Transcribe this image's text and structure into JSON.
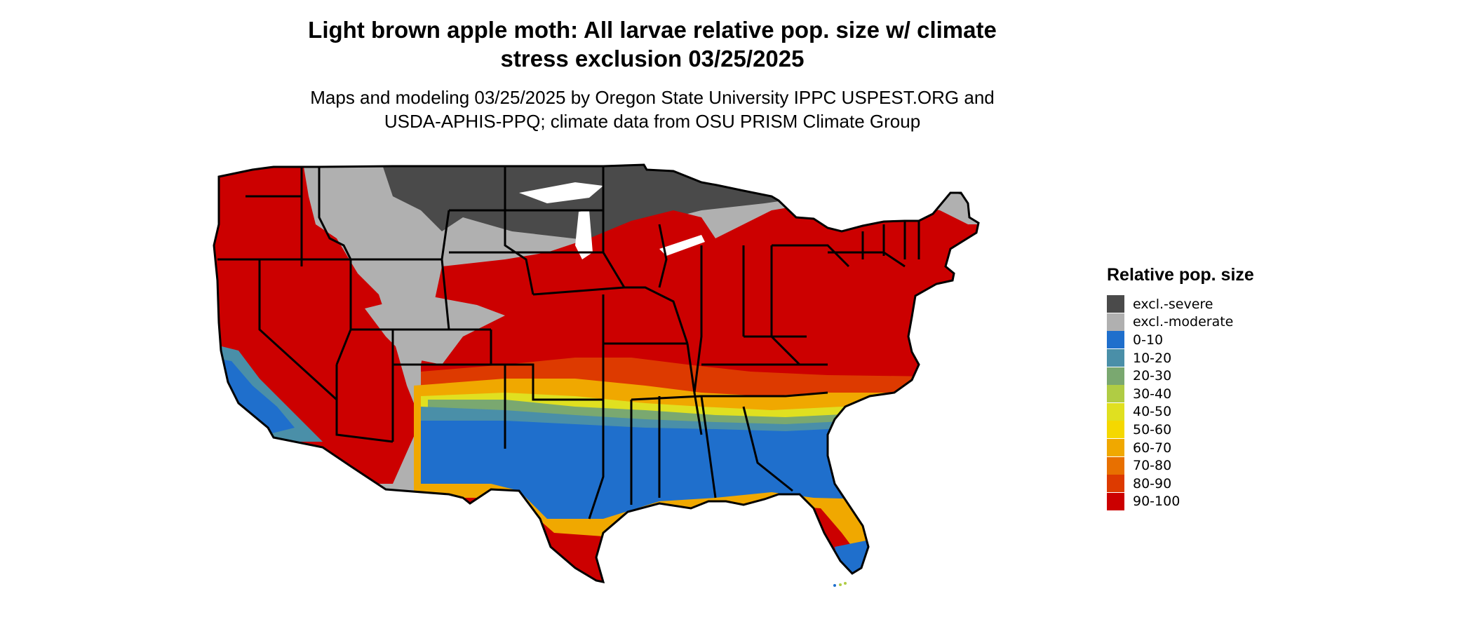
{
  "title_line1": "Light brown apple moth: All larvae relative pop. size w/ climate",
  "title_line2": "stress exclusion 03/25/2025",
  "subtitle_line1": "Maps and modeling 03/25/2025 by Oregon State University IPPC USPEST.ORG and",
  "subtitle_line2": "USDA-APHIS-PPQ; climate data from OSU PRISM Climate Group",
  "legend": {
    "title": "Relative pop. size",
    "items": [
      {
        "label": "excl.-severe",
        "color": "#4a4a4a"
      },
      {
        "label": "excl.-moderate",
        "color": "#b0b0b0"
      },
      {
        "label": "0-10",
        "color": "#1f6fcc"
      },
      {
        "label": "10-20",
        "color": "#4a8fa8"
      },
      {
        "label": "20-30",
        "color": "#7aa870"
      },
      {
        "label": "30-40",
        "color": "#b0cc44"
      },
      {
        "label": "40-50",
        "color": "#e0e020"
      },
      {
        "label": "50-60",
        "color": "#f5d800"
      },
      {
        "label": "60-70",
        "color": "#f0a800"
      },
      {
        "label": "70-80",
        "color": "#e87000"
      },
      {
        "label": "80-90",
        "color": "#dd3a00"
      },
      {
        "label": "90-100",
        "color": "#cc0000"
      }
    ]
  }
}
